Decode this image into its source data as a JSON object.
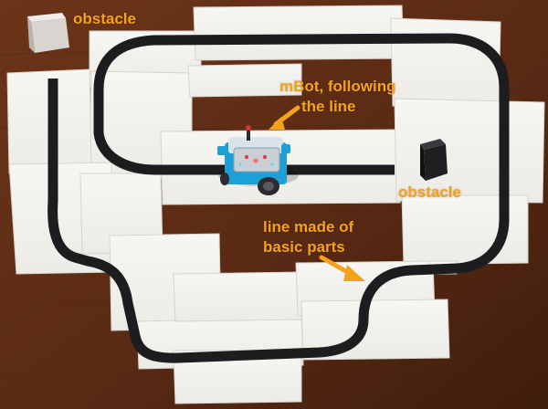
{
  "annotations": {
    "obstacle_top_left": "obstacle",
    "mbot_line_1": "mBot, following",
    "mbot_line_2": "the line",
    "obstacle_right": "obstacle",
    "line_line_1": "line made of",
    "line_line_2": "basic parts"
  },
  "colors": {
    "annotation": "#f5a21b",
    "floor": "#5c2d15",
    "paper": "#f3f2ee",
    "track": "#1d1d1f",
    "robot_accent": "#1e9fd6"
  }
}
